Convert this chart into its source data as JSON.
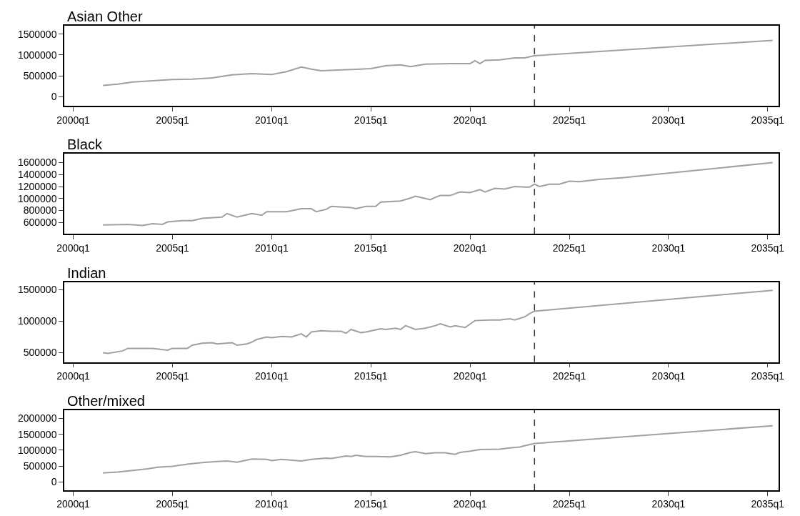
{
  "chart_data": [
    {
      "type": "line",
      "title": "Asian Other",
      "color": "#a0a0a0",
      "x": [
        "2001-07",
        "2002-04",
        "2003-01",
        "2004-01",
        "2005-01",
        "2006-01",
        "2007-01",
        "2008-01",
        "2009-01",
        "2010-01",
        "2010-10",
        "2011-07",
        "2012-01",
        "2012-07",
        "2014-01",
        "2015-01",
        "2015-10",
        "2016-07",
        "2017-01",
        "2017-10",
        "2019-01",
        "2020-01",
        "2020-04",
        "2020-07",
        "2020-10",
        "2021-07",
        "2022-04",
        "2022-10",
        "2023-04",
        "2035-04"
      ],
      "values": [
        270000,
        300000,
        350000,
        380000,
        410000,
        420000,
        450000,
        520000,
        550000,
        530000,
        600000,
        710000,
        660000,
        620000,
        650000,
        670000,
        740000,
        760000,
        720000,
        780000,
        790000,
        790000,
        860000,
        790000,
        870000,
        880000,
        930000,
        930000,
        980000,
        1350000
      ],
      "xlim": [
        "1999-07-20",
        "2035-07-20"
      ],
      "ylim": [
        -220000,
        1700000
      ],
      "xticks": [
        {
          "value": "2000-01-01",
          "label": "2000q1"
        },
        {
          "value": "2005-01-01",
          "label": "2005q1"
        },
        {
          "value": "2010-01-01",
          "label": "2010q1"
        },
        {
          "value": "2015-01-01",
          "label": "2015q1"
        },
        {
          "value": "2020-01-01",
          "label": "2020q1"
        },
        {
          "value": "2025-01-01",
          "label": "2025q1"
        },
        {
          "value": "2030-01-01",
          "label": "2030q1"
        },
        {
          "value": "2035-01-01",
          "label": "2035q1"
        }
      ],
      "yticks": [
        0,
        500000,
        1000000,
        1500000
      ],
      "ref_lines": [
        {
          "axis": "x",
          "value": "2023-04",
          "color": "#333333",
          "line_style": "dashed"
        }
      ]
    },
    {
      "type": "line",
      "title": "Black",
      "color": "#a0a0a0",
      "x": [
        "2001-07",
        "2002-10",
        "2003-07",
        "2004-01",
        "2004-07",
        "2004-10",
        "2005-07",
        "2006-01",
        "2006-07",
        "2007-07",
        "2007-10",
        "2008-04",
        "2009-01",
        "2009-07",
        "2009-10",
        "2010-10",
        "2011-07",
        "2012-01",
        "2012-04",
        "2012-10",
        "2013-01",
        "2014-01",
        "2014-04",
        "2014-10",
        "2015-04",
        "2015-07",
        "2016-07",
        "2017-01",
        "2017-04",
        "2017-10",
        "2018-01",
        "2018-04",
        "2018-07",
        "2019-01",
        "2019-07",
        "2020-01",
        "2020-07",
        "2020-10",
        "2021-04",
        "2021-10",
        "2022-04",
        "2022-10",
        "2023-01",
        "2023-04",
        "2023-07",
        "2024-01",
        "2024-07",
        "2025-01",
        "2025-07",
        "2026-07",
        "2027-10",
        "2029-01",
        "2035-04"
      ],
      "values": [
        560000,
        570000,
        550000,
        580000,
        570000,
        610000,
        630000,
        630000,
        670000,
        690000,
        750000,
        690000,
        750000,
        720000,
        780000,
        780000,
        830000,
        830000,
        780000,
        820000,
        870000,
        850000,
        830000,
        870000,
        870000,
        940000,
        960000,
        1010000,
        1040000,
        1000000,
        980000,
        1020000,
        1050000,
        1050000,
        1110000,
        1100000,
        1150000,
        1110000,
        1170000,
        1160000,
        1200000,
        1190000,
        1190000,
        1240000,
        1200000,
        1240000,
        1240000,
        1290000,
        1280000,
        1320000,
        1350000,
        1390000,
        1600000
      ],
      "xlim": [
        "1999-07-20",
        "2035-07-20"
      ],
      "ylim": [
        410000,
        1745000
      ],
      "xticks": [
        {
          "value": "2000-01-01",
          "label": "2000q1"
        },
        {
          "value": "2005-01-01",
          "label": "2005q1"
        },
        {
          "value": "2010-01-01",
          "label": "2010q1"
        },
        {
          "value": "2015-01-01",
          "label": "2015q1"
        },
        {
          "value": "2020-01-01",
          "label": "2020q1"
        },
        {
          "value": "2025-01-01",
          "label": "2025q1"
        },
        {
          "value": "2030-01-01",
          "label": "2030q1"
        },
        {
          "value": "2035-01-01",
          "label": "2035q1"
        }
      ],
      "yticks": [
        600000,
        800000,
        1000000,
        1200000,
        1400000,
        1600000
      ],
      "ref_lines": [
        {
          "axis": "x",
          "value": "2023-04",
          "color": "#333333",
          "line_style": "dashed"
        }
      ]
    },
    {
      "type": "line",
      "title": "Indian",
      "color": "#a0a0a0",
      "x": [
        "2001-07",
        "2001-10",
        "2002-07",
        "2002-10",
        "2004-01",
        "2004-10",
        "2005-01",
        "2005-10",
        "2006-01",
        "2006-07",
        "2007-01",
        "2007-04",
        "2008-01",
        "2008-04",
        "2008-10",
        "2009-01",
        "2009-04",
        "2009-10",
        "2010-01",
        "2010-07",
        "2011-01",
        "2011-07",
        "2011-10",
        "2012-01",
        "2012-07",
        "2013-01",
        "2013-07",
        "2013-10",
        "2014-01",
        "2014-07",
        "2014-10",
        "2015-07",
        "2015-10",
        "2016-04",
        "2016-07",
        "2016-10",
        "2017-04",
        "2017-10",
        "2018-04",
        "2018-07",
        "2019-01",
        "2019-04",
        "2019-10",
        "2020-04",
        "2021-01",
        "2021-07",
        "2022-01",
        "2022-04",
        "2022-10",
        "2023-01",
        "2023-04",
        "2035-04"
      ],
      "values": [
        500000,
        490000,
        530000,
        570000,
        570000,
        540000,
        570000,
        570000,
        620000,
        650000,
        660000,
        640000,
        660000,
        620000,
        640000,
        670000,
        710000,
        750000,
        740000,
        760000,
        750000,
        800000,
        750000,
        830000,
        850000,
        840000,
        840000,
        810000,
        870000,
        820000,
        830000,
        880000,
        870000,
        890000,
        870000,
        930000,
        870000,
        890000,
        930000,
        960000,
        910000,
        930000,
        900000,
        1010000,
        1020000,
        1020000,
        1040000,
        1020000,
        1070000,
        1120000,
        1160000,
        1490000
      ],
      "xlim": [
        "1999-07-20",
        "2035-07-20"
      ],
      "ylim": [
        352000,
        1623000
      ],
      "xticks": [
        {
          "value": "2000-01-01",
          "label": "2000q1"
        },
        {
          "value": "2005-01-01",
          "label": "2005q1"
        },
        {
          "value": "2010-01-01",
          "label": "2010q1"
        },
        {
          "value": "2015-01-01",
          "label": "2015q1"
        },
        {
          "value": "2020-01-01",
          "label": "2020q1"
        },
        {
          "value": "2025-01-01",
          "label": "2025q1"
        },
        {
          "value": "2030-01-01",
          "label": "2030q1"
        },
        {
          "value": "2035-01-01",
          "label": "2035q1"
        }
      ],
      "yticks": [
        500000,
        1000000,
        1500000
      ],
      "ref_lines": [
        {
          "axis": "x",
          "value": "2023-04",
          "color": "#333333",
          "line_style": "dashed"
        }
      ]
    },
    {
      "type": "line",
      "title": "Other/mixed",
      "color": "#a0a0a0",
      "x": [
        "2001-07",
        "2002-04",
        "2003-01",
        "2003-10",
        "2004-04",
        "2005-01",
        "2005-10",
        "2006-07",
        "2007-04",
        "2007-10",
        "2008-04",
        "2009-01",
        "2009-10",
        "2010-01",
        "2010-07",
        "2011-07",
        "2012-01",
        "2012-10",
        "2013-01",
        "2013-10",
        "2014-01",
        "2014-04",
        "2014-10",
        "2015-04",
        "2016-01",
        "2016-07",
        "2017-01",
        "2017-04",
        "2017-10",
        "2018-04",
        "2018-10",
        "2019-01",
        "2019-04",
        "2019-07",
        "2020-01",
        "2020-07",
        "2021-07",
        "2022-01",
        "2022-07",
        "2023-01",
        "2023-04",
        "2035-04"
      ],
      "values": [
        280000,
        310000,
        360000,
        410000,
        460000,
        490000,
        560000,
        610000,
        640000,
        660000,
        620000,
        720000,
        710000,
        670000,
        710000,
        660000,
        710000,
        750000,
        740000,
        820000,
        800000,
        840000,
        800000,
        800000,
        790000,
        840000,
        930000,
        950000,
        890000,
        920000,
        920000,
        890000,
        870000,
        930000,
        970000,
        1020000,
        1030000,
        1070000,
        1100000,
        1180000,
        1210000,
        1770000
      ],
      "xlim": [
        "1999-07-20",
        "2035-07-20"
      ],
      "ylim": [
        -262000,
        2262000
      ],
      "xticks": [
        {
          "value": "2000-01-01",
          "label": "2000q1"
        },
        {
          "value": "2005-01-01",
          "label": "2005q1"
        },
        {
          "value": "2010-01-01",
          "label": "2010q1"
        },
        {
          "value": "2015-01-01",
          "label": "2015q1"
        },
        {
          "value": "2020-01-01",
          "label": "2020q1"
        },
        {
          "value": "2025-01-01",
          "label": "2025q1"
        },
        {
          "value": "2030-01-01",
          "label": "2030q1"
        },
        {
          "value": "2035-01-01",
          "label": "2035q1"
        }
      ],
      "yticks": [
        0,
        500000,
        1000000,
        1500000,
        2000000
      ],
      "ref_lines": [
        {
          "axis": "x",
          "value": "2023-04",
          "color": "#333333",
          "line_style": "dashed"
        }
      ]
    }
  ]
}
